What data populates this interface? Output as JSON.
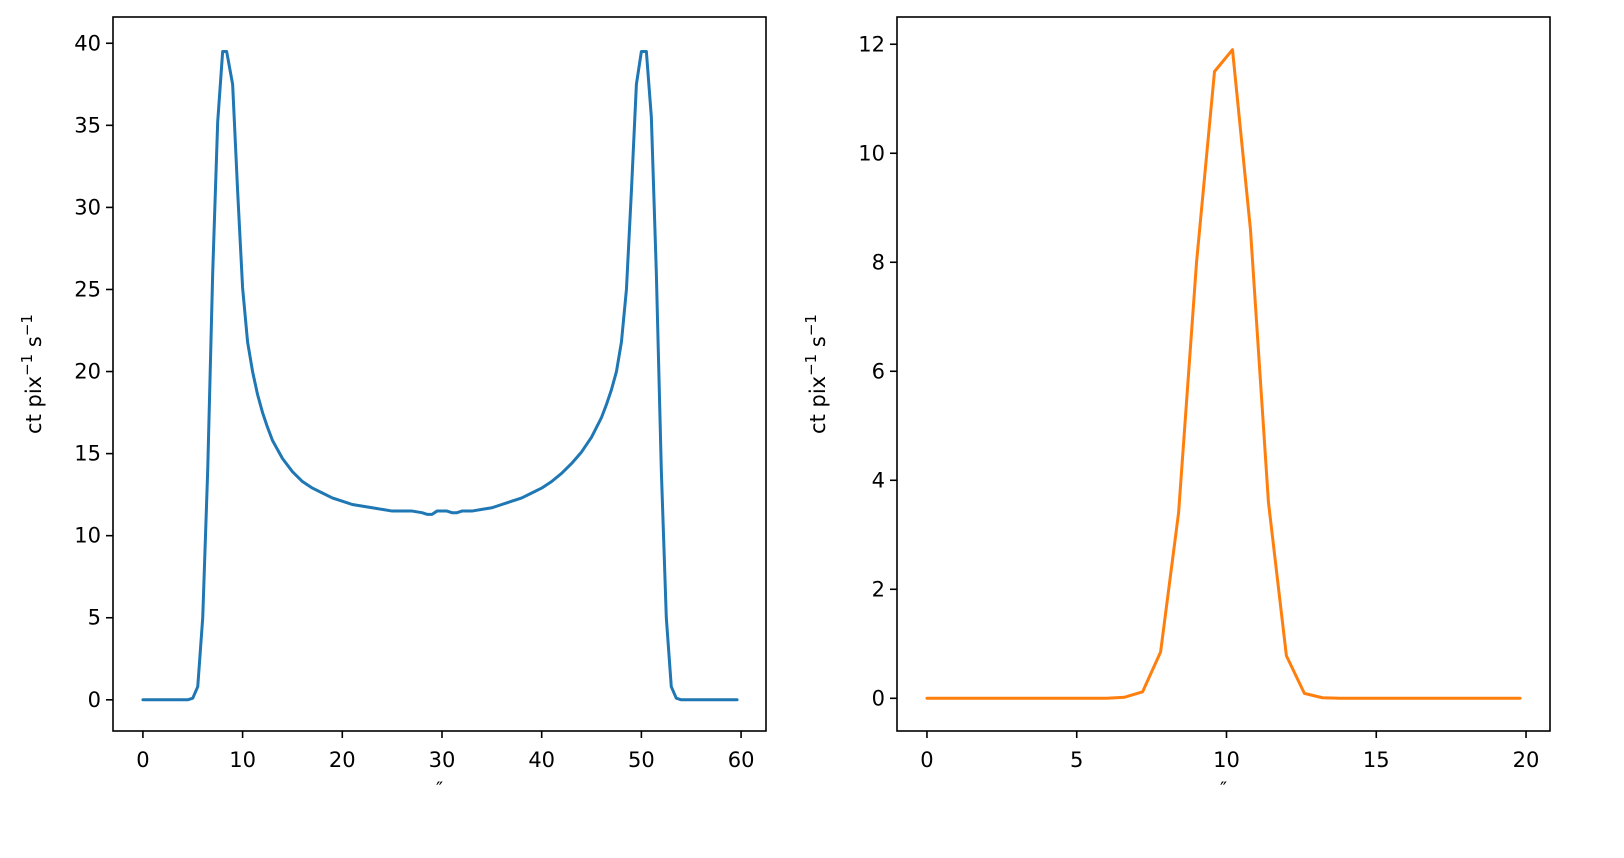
{
  "chart_data": [
    {
      "type": "line",
      "title": "",
      "xlabel": "″",
      "ylabel_main": "ct pix",
      "ylabel_exp1": "−1",
      "ylabel_s": " s",
      "ylabel_exp2": "−1",
      "xlim": [
        -3,
        62.5
      ],
      "ylim": [
        -1.9,
        41.6
      ],
      "xticks": [
        0,
        10,
        20,
        30,
        40,
        50,
        60
      ],
      "yticks": [
        0,
        5,
        10,
        15,
        20,
        25,
        30,
        35,
        40
      ],
      "grid": false,
      "series": [
        {
          "color": "#1f77b4",
          "x": [
            0,
            1,
            2,
            3,
            4,
            4.5,
            5,
            5.5,
            6,
            6.5,
            7,
            7.5,
            8,
            8.4,
            9,
            9.5,
            10,
            10.5,
            11,
            11.5,
            12,
            12.5,
            13,
            14,
            15,
            16,
            17,
            18,
            19,
            20,
            21,
            22,
            23,
            24,
            25,
            26,
            27,
            28,
            28.5,
            29,
            29.5,
            30,
            30.5,
            31,
            31.5,
            32,
            33,
            34,
            35,
            36,
            37,
            38,
            39,
            40,
            41,
            42,
            43,
            44,
            45,
            46,
            46.5,
            47,
            47.5,
            48,
            48.5,
            49,
            49.5,
            50,
            50.5,
            51,
            51.5,
            52,
            52.5,
            53,
            53.5,
            54,
            54.5,
            55,
            56,
            57,
            58,
            59,
            59.6
          ],
          "y": [
            0,
            0,
            0,
            0,
            0,
            0,
            0.1,
            0.8,
            5,
            14,
            26,
            35.2,
            39.5,
            39.5,
            37.5,
            31,
            25.1,
            21.8,
            20,
            18.6,
            17.5,
            16.6,
            15.8,
            14.7,
            13.9,
            13.3,
            12.9,
            12.6,
            12.3,
            12.1,
            11.9,
            11.8,
            11.7,
            11.6,
            11.5,
            11.5,
            11.5,
            11.4,
            11.3,
            11.3,
            11.5,
            11.5,
            11.5,
            11.4,
            11.4,
            11.5,
            11.5,
            11.6,
            11.7,
            11.9,
            12.1,
            12.3,
            12.6,
            12.9,
            13.3,
            13.8,
            14.4,
            15.1,
            16,
            17.2,
            18,
            18.9,
            20,
            21.8,
            25,
            31,
            37.5,
            39.5,
            39.5,
            35.5,
            26,
            14,
            5,
            0.8,
            0.1,
            0,
            0,
            0,
            0,
            0,
            0,
            0,
            0
          ]
        }
      ]
    },
    {
      "type": "line",
      "title": "",
      "xlabel": "″",
      "ylabel_main": "ct pix",
      "ylabel_exp1": "−1",
      "ylabel_s": " s",
      "ylabel_exp2": "−1",
      "xlim": [
        -1,
        20.8
      ],
      "ylim": [
        -0.6,
        12.5
      ],
      "xticks": [
        0,
        5,
        10,
        15,
        20
      ],
      "yticks": [
        0,
        2,
        4,
        6,
        8,
        10,
        12
      ],
      "grid": false,
      "series": [
        {
          "color": "#ff7f0e",
          "x": [
            0,
            0.6,
            1.2,
            1.8,
            2.4,
            3,
            3.6,
            4.2,
            4.8,
            5.4,
            6,
            6.6,
            7.2,
            7.8,
            8.4,
            9,
            9.6,
            10.2,
            10.8,
            11.4,
            12,
            12.6,
            13.2,
            13.8,
            14.4,
            15,
            15.6,
            16.2,
            16.8,
            17.4,
            18,
            18.6,
            19.2,
            19.8
          ],
          "y": [
            0,
            0,
            0,
            0,
            0,
            0,
            0,
            0,
            0,
            0,
            0,
            0.02,
            0.12,
            0.85,
            3.4,
            8,
            11.5,
            11.9,
            8.6,
            3.6,
            0.78,
            0.09,
            0.01,
            0,
            0,
            0,
            0,
            0,
            0,
            0,
            0,
            0,
            0,
            0
          ]
        }
      ]
    }
  ]
}
